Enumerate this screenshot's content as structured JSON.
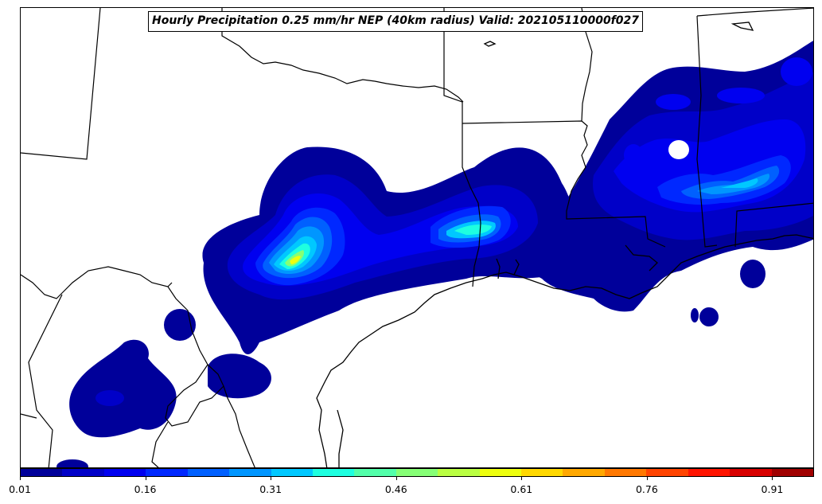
{
  "title": "Hourly Precipitation 0.25 mm/hr NEP (40km radius) Valid: 202105110000f027",
  "colorbar": {
    "colors": [
      "#00009a",
      "#0000c8",
      "#0000f0",
      "#0028ff",
      "#0060ff",
      "#0096ff",
      "#00c8ff",
      "#1effe0",
      "#52ffaa",
      "#86ff76",
      "#baff42",
      "#eeff0e",
      "#ffd800",
      "#ffa800",
      "#ff7800",
      "#ff4400",
      "#ff1400",
      "#d80000",
      "#a00000"
    ],
    "ticks": [
      "0.01",
      "0.16",
      "0.31",
      "0.46",
      "0.61",
      "0.76",
      "0.91"
    ]
  }
}
